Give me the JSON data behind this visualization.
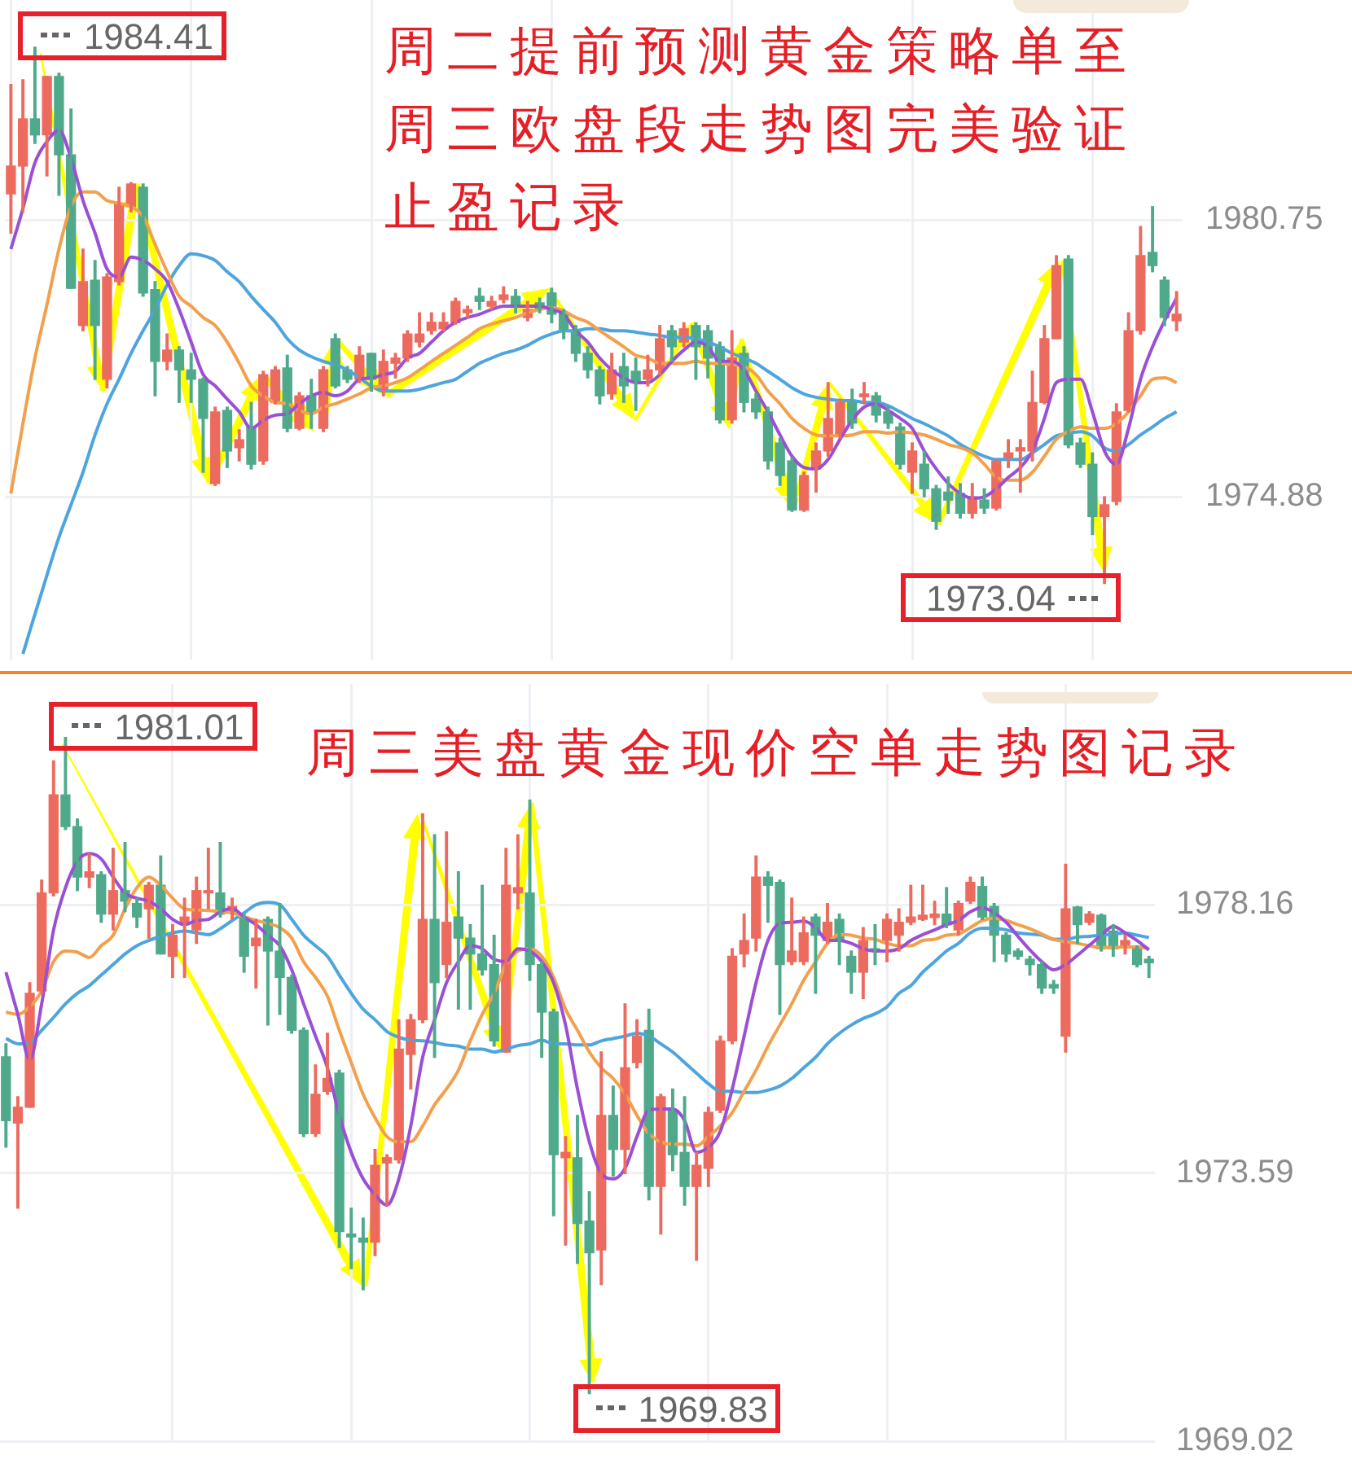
{
  "chart_data": [
    {
      "type": "candlestick",
      "title": "周二提前预测黄金策略单至周三欧盘段走势图完美验证止盈记录",
      "categories": [
        null,
        null,
        null,
        null,
        null,
        null,
        null,
        null,
        null,
        null,
        null,
        null,
        null,
        null,
        null,
        null,
        null,
        null,
        null,
        null,
        null,
        null,
        null,
        null,
        null,
        null,
        null,
        null,
        null,
        null,
        null,
        null,
        null,
        null,
        null,
        null,
        null,
        null,
        null,
        null,
        null,
        null,
        null,
        null,
        null,
        null,
        null,
        null,
        null,
        null,
        null,
        null,
        null,
        null,
        null,
        null,
        null,
        null,
        null,
        null,
        null,
        null,
        null,
        null,
        null,
        null,
        null,
        null,
        null,
        null,
        null,
        null,
        null,
        null,
        null,
        null,
        null,
        null,
        null,
        null,
        null,
        null,
        null,
        null,
        null,
        null,
        null,
        null,
        null,
        null,
        null,
        null,
        null,
        null,
        null,
        null,
        null,
        null
      ],
      "ohlc": [
        [
          1981.3,
          1983.62,
          1980.47,
          1981.89
        ],
        [
          1981.89,
          1983.72,
          1980.92,
          1982.89
        ],
        [
          1982.89,
          1984.41,
          1982.37,
          1982.55
        ],
        [
          1982.55,
          1983.79,
          1981.68,
          1983.79
        ],
        [
          1983.79,
          1983.86,
          1981.27,
          1982.13
        ],
        [
          1982.13,
          1983.1,
          1979.3,
          1979.3
        ],
        [
          1978.51,
          1980.13,
          1978.4,
          1979.44
        ],
        [
          1979.47,
          1979.89,
          1977.37,
          1978.51
        ],
        [
          1977.37,
          1979.61,
          1977.19,
          1979.54
        ],
        [
          1979.44,
          1981.44,
          1979.37,
          1981.1
        ],
        [
          1981.03,
          1981.54,
          1980.92,
          1981.51
        ],
        [
          1981.44,
          1981.51,
          1979.13,
          1979.2
        ],
        [
          1979.27,
          1979.44,
          1977.02,
          1977.75
        ],
        [
          1977.75,
          1978.33,
          1977.57,
          1977.99
        ],
        [
          1977.99,
          1978.06,
          1976.88,
          1977.57
        ],
        [
          1977.57,
          1977.92,
          1976.88,
          1977.37
        ],
        [
          1977.37,
          1977.4,
          1975.4,
          1976.54
        ],
        [
          1975.16,
          1976.78,
          1975.12,
          1976.68
        ],
        [
          1976.71,
          1976.78,
          1975.5,
          1975.85
        ],
        [
          1975.92,
          1976.3,
          1975.64,
          1976.09
        ],
        [
          1976.36,
          1976.88,
          1975.47,
          1975.57
        ],
        [
          1975.64,
          1977.54,
          1975.57,
          1977.47
        ],
        [
          1976.88,
          1977.64,
          1976.85,
          1977.57
        ],
        [
          1977.61,
          1977.88,
          1976.26,
          1976.33
        ],
        [
          1976.33,
          1977.09,
          1976.3,
          1977.02
        ],
        [
          1977.02,
          1977.37,
          1976.33,
          1976.68
        ],
        [
          1976.33,
          1977.64,
          1976.26,
          1977.57
        ],
        [
          1978.23,
          1978.33,
          1977.19,
          1977.23
        ],
        [
          1977.57,
          1977.64,
          1977.3,
          1977.37
        ],
        [
          1977.37,
          1978.06,
          1977.3,
          1977.88
        ],
        [
          1977.92,
          1977.92,
          1977.12,
          1977.37
        ],
        [
          1977.12,
          1977.99,
          1977.02,
          1977.75
        ],
        [
          1977.71,
          1977.92,
          1977.4,
          1977.82
        ],
        [
          1977.82,
          1978.4,
          1977.75,
          1978.33
        ],
        [
          1978.16,
          1978.78,
          1978.06,
          1978.33
        ],
        [
          1978.4,
          1978.78,
          1978.33,
          1978.58
        ],
        [
          1978.44,
          1978.78,
          1978.4,
          1978.58
        ],
        [
          1978.57,
          1979.09,
          1978.54,
          1979.02
        ],
        [
          1978.78,
          1978.92,
          1978.68,
          1978.85
        ],
        [
          1979.13,
          1979.3,
          1978.85,
          1979.02
        ],
        [
          1978.92,
          1979.13,
          1978.85,
          1979.02
        ],
        [
          1979.06,
          1979.33,
          1978.99,
          1979.16
        ],
        [
          1979.13,
          1979.27,
          1978.78,
          1978.92
        ],
        [
          1978.68,
          1979.02,
          1978.61,
          1978.85
        ],
        [
          1978.99,
          1979.09,
          1978.78,
          1978.85
        ],
        [
          1979.2,
          1979.3,
          1978.57,
          1978.75
        ],
        [
          1978.78,
          1978.85,
          1978.23,
          1978.4
        ],
        [
          1978.4,
          1978.51,
          1977.75,
          1977.92
        ],
        [
          1977.92,
          1978.06,
          1977.4,
          1977.57
        ],
        [
          1977.57,
          1977.64,
          1976.85,
          1977.02
        ],
        [
          1977.06,
          1977.92,
          1976.95,
          1977.57
        ],
        [
          1977.64,
          1977.92,
          1976.88,
          1977.23
        ],
        [
          1977.54,
          1977.82,
          1976.71,
          1977.3
        ],
        [
          1977.37,
          1977.88,
          1977.23,
          1977.57
        ],
        [
          1977.57,
          1978.51,
          1977.47,
          1978.23
        ],
        [
          1978.4,
          1978.51,
          1977.75,
          1978.06
        ],
        [
          1978.16,
          1978.57,
          1978.06,
          1978.44
        ],
        [
          1978.51,
          1978.57,
          1977.37,
          1978.06
        ],
        [
          1978.4,
          1978.51,
          1977.4,
          1977.82
        ],
        [
          1978.06,
          1978.16,
          1976.44,
          1976.51
        ],
        [
          1976.51,
          1978.4,
          1976.44,
          1977.82
        ],
        [
          1977.92,
          1978.06,
          1976.68,
          1976.88
        ],
        [
          1976.95,
          1977.06,
          1976.54,
          1976.68
        ],
        [
          1976.68,
          1976.78,
          1975.47,
          1975.64
        ],
        [
          1976.02,
          1976.12,
          1975.12,
          1975.33
        ],
        [
          1975.64,
          1975.71,
          1974.57,
          1974.6
        ],
        [
          1974.6,
          1975.4,
          1974.57,
          1975.33
        ],
        [
          1975.47,
          1976.02,
          1974.98,
          1975.85
        ],
        [
          1975.85,
          1977.3,
          1975.74,
          1976.54
        ],
        [
          1976.19,
          1976.95,
          1976.12,
          1976.88
        ],
        [
          1976.88,
          1977.16,
          1976.33,
          1976.44
        ],
        [
          1977.0,
          1977.3,
          1976.85,
          1977.06
        ],
        [
          1977.02,
          1977.09,
          1976.47,
          1976.61
        ],
        [
          1976.68,
          1976.81,
          1976.33,
          1976.44
        ],
        [
          1976.36,
          1976.44,
          1975.47,
          1975.57
        ],
        [
          1975.4,
          1976.02,
          1974.95,
          1975.85
        ],
        [
          1975.57,
          1975.85,
          1974.88,
          1975.05
        ],
        [
          1975.05,
          1975.12,
          1974.19,
          1974.36
        ],
        [
          1974.98,
          1975.3,
          1974.53,
          1974.81
        ],
        [
          1974.95,
          1975.16,
          1974.43,
          1974.53
        ],
        [
          1974.53,
          1975.16,
          1974.43,
          1974.88
        ],
        [
          1974.81,
          1975.05,
          1974.53,
          1974.64
        ],
        [
          1974.64,
          1975.67,
          1974.6,
          1975.64
        ],
        [
          1975.71,
          1976.09,
          1975.5,
          1975.81
        ],
        [
          1975.85,
          1976.09,
          1974.98,
          1975.92
        ],
        [
          1975.85,
          1977.54,
          1975.64,
          1976.88
        ],
        [
          1976.88,
          1978.51,
          1976.85,
          1978.23
        ],
        [
          1978.23,
          1979.99,
          1978.23,
          1979.78
        ],
        [
          1979.92,
          1979.99,
          1975.92,
          1975.98
        ],
        [
          1976.02,
          1976.12,
          1975.5,
          1975.57
        ],
        [
          1975.57,
          1975.81,
          1974.08,
          1974.46
        ],
        [
          1974.46,
          1974.88,
          1973.04,
          1974.71
        ],
        [
          1974.78,
          1976.85,
          1974.71,
          1976.68
        ],
        [
          1976.71,
          1978.78,
          1976.68,
          1978.4
        ],
        [
          1978.4,
          1980.61,
          1978.33,
          1979.99
        ],
        [
          1980.06,
          1981.03,
          1979.65,
          1979.78
        ],
        [
          1979.47,
          1979.54,
          1978.51,
          1978.68
        ],
        [
          1978.61,
          1979.23,
          1978.4,
          1978.75
        ]
      ],
      "colors": [
        "#ec6b5e",
        "#ec6b5e",
        "#4fa98b",
        "#ec6b5e",
        "#4fa98b",
        "#4fa98b",
        "#ec6b5e",
        "#4fa98b",
        "#ec6b5e",
        "#ec6b5e",
        "#ec6b5e",
        "#4fa98b",
        "#4fa98b",
        "#ec6b5e",
        "#4fa98b",
        "#4fa98b",
        "#4fa98b",
        "#ec6b5e",
        "#4fa98b",
        "#ec6b5e",
        "#4fa98b",
        "#ec6b5e",
        "#ec6b5e",
        "#4fa98b",
        "#ec6b5e",
        "#4fa98b",
        "#ec6b5e",
        "#4fa98b",
        "#4fa98b",
        "#ec6b5e",
        "#4fa98b",
        "#ec6b5e",
        "#ec6b5e",
        "#ec6b5e",
        "#ec6b5e",
        "#ec6b5e",
        "#ec6b5e",
        "#ec6b5e",
        "#ec6b5e",
        "#4fa98b",
        "#ec6b5e",
        "#ec6b5e",
        "#4fa98b",
        "#ec6b5e",
        "#4fa98b",
        "#4fa98b",
        "#4fa98b",
        "#4fa98b",
        "#4fa98b",
        "#4fa98b",
        "#ec6b5e",
        "#4fa98b",
        "#4fa98b",
        "#ec6b5e",
        "#ec6b5e",
        "#4fa98b",
        "#ec6b5e",
        "#4fa98b",
        "#4fa98b",
        "#4fa98b",
        "#ec6b5e",
        "#4fa98b",
        "#4fa98b",
        "#4fa98b",
        "#4fa98b",
        "#4fa98b",
        "#ec6b5e",
        "#ec6b5e",
        "#ec6b5e",
        "#ec6b5e",
        "#4fa98b",
        "#ec6b5e",
        "#4fa98b",
        "#4fa98b",
        "#4fa98b",
        "#ec6b5e",
        "#4fa98b",
        "#4fa98b",
        "#4fa98b",
        "#4fa98b",
        "#ec6b5e",
        "#4fa98b",
        "#ec6b5e",
        "#ec6b5e",
        "#ec6b5e",
        "#ec6b5e",
        "#ec6b5e",
        "#ec6b5e",
        "#4fa98b",
        "#4fa98b",
        "#4fa98b",
        "#ec6b5e",
        "#ec6b5e",
        "#ec6b5e",
        "#ec6b5e",
        "#4fa98b",
        "#4fa98b",
        "#ec6b5e"
      ],
      "series": [
        {
          "type": "line",
          "color": "#9b4fd4",
          "values": [
            1980.13,
            1980.99,
            1981.96,
            1982.41,
            1982.65,
            1982.06,
            1981.16,
            1980.47,
            1979.71,
            1979.54,
            1979.96,
            1979.89,
            1979.71,
            1979.44,
            1978.85,
            1978.16,
            1977.47,
            1977.23,
            1976.95,
            1976.68,
            1976.33,
            1976.5,
            1976.61,
            1976.64,
            1976.85,
            1977.02,
            1977.09,
            1977.02,
            1977.12,
            1977.37,
            1977.4,
            1977.47,
            1977.54,
            1977.82,
            1977.92,
            1978.16,
            1978.4,
            1978.58,
            1978.68,
            1978.75,
            1978.85,
            1978.92,
            1978.92,
            1978.92,
            1978.92,
            1978.85,
            1978.75,
            1978.4,
            1978.16,
            1977.82,
            1977.57,
            1977.4,
            1977.3,
            1977.3,
            1977.47,
            1977.75,
            1977.99,
            1978.16,
            1978.06,
            1977.75,
            1977.75,
            1977.57,
            1977.12,
            1976.68,
            1976.19,
            1975.74,
            1975.5,
            1975.47,
            1975.67,
            1976.1,
            1976.5,
            1976.78,
            1976.85,
            1976.71,
            1976.54,
            1976.33,
            1975.85,
            1975.47,
            1975.16,
            1974.95,
            1974.85,
            1974.88,
            1975.05,
            1975.29,
            1975.5,
            1975.85,
            1976.54,
            1977.3,
            1977.37,
            1977.37,
            1976.68,
            1975.85,
            1975.57,
            1976.33,
            1977.37,
            1978.06,
            1978.61,
            1979.09
          ]
        },
        {
          "type": "line",
          "color": "#f2a04c",
          "values": [
            1974.95,
            1976.43,
            1977.82,
            1978.95,
            1980.13,
            1981.03,
            1981.34,
            1981.34,
            1981.16,
            1981.1,
            1981.03,
            1980.82,
            1980.23,
            1979.65,
            1979.13,
            1978.92,
            1978.68,
            1978.51,
            1978.16,
            1977.71,
            1977.23,
            1977.02,
            1976.88,
            1976.85,
            1976.71,
            1976.64,
            1976.78,
            1976.85,
            1976.95,
            1977.06,
            1977.19,
            1977.23,
            1977.3,
            1977.4,
            1977.57,
            1977.75,
            1977.92,
            1978.09,
            1978.26,
            1978.44,
            1978.54,
            1978.61,
            1978.68,
            1978.78,
            1978.85,
            1978.89,
            1978.82,
            1978.68,
            1978.58,
            1978.4,
            1978.23,
            1978.06,
            1977.88,
            1977.82,
            1977.71,
            1977.71,
            1977.71,
            1977.75,
            1977.71,
            1977.71,
            1977.68,
            1977.64,
            1977.47,
            1977.12,
            1976.85,
            1976.54,
            1976.33,
            1976.19,
            1976.17,
            1976.17,
            1976.19,
            1976.26,
            1976.26,
            1976.23,
            1976.26,
            1976.23,
            1976.19,
            1976.1,
            1975.99,
            1975.92,
            1975.81,
            1975.57,
            1975.29,
            1975.23,
            1975.23,
            1975.4,
            1975.74,
            1976.1,
            1976.26,
            1976.36,
            1976.33,
            1976.33,
            1976.43,
            1976.68,
            1977.02,
            1977.37,
            1977.4,
            1977.3
          ]
        },
        {
          "type": "line",
          "color": "#4ea5de",
          "values": [
            null,
            1971.55,
            1972.39,
            1973.22,
            1974.02,
            1974.71,
            1975.4,
            1976.19,
            1976.85,
            1977.37,
            1977.92,
            1978.4,
            1978.85,
            1979.37,
            1979.78,
            1980.03,
            1979.99,
            1979.89,
            1979.65,
            1979.44,
            1979.13,
            1978.85,
            1978.58,
            1978.23,
            1977.99,
            1977.85,
            1977.75,
            1977.68,
            1977.57,
            1977.4,
            1977.23,
            1977.12,
            1977.12,
            1977.12,
            1977.16,
            1977.23,
            1977.3,
            1977.37,
            1977.54,
            1977.71,
            1977.82,
            1977.92,
            1977.99,
            1978.09,
            1978.23,
            1978.33,
            1978.4,
            1978.4,
            1978.44,
            1978.44,
            1978.4,
            1978.4,
            1978.37,
            1978.33,
            1978.3,
            1978.26,
            1978.26,
            1978.23,
            1978.16,
            1978.06,
            1977.92,
            1977.82,
            1977.71,
            1977.54,
            1977.37,
            1977.19,
            1977.06,
            1976.99,
            1976.95,
            1976.92,
            1976.92,
            1976.88,
            1976.88,
            1976.81,
            1976.68,
            1976.54,
            1976.43,
            1976.3,
            1976.17,
            1975.99,
            1975.85,
            1975.74,
            1975.67,
            1975.67,
            1975.67,
            1975.81,
            1975.99,
            1976.17,
            1976.23,
            1976.26,
            1976.17,
            1975.92,
            1975.85,
            1975.99,
            1976.19,
            1976.36,
            1976.54,
            1976.68
          ]
        }
      ],
      "ylim": [
        1971.43,
        1985.41
      ],
      "yticks": [
        1974.88,
        1980.75
      ],
      "grid": true,
      "tick_labels": "y",
      "annotations": [
        "1984.41",
        "1973.04"
      ]
    },
    {
      "type": "candlestick",
      "title": "周三美盘黄金现价空单走势图记录",
      "categories": [
        null,
        null,
        null,
        null,
        null,
        null,
        null,
        null,
        null,
        null,
        null,
        null,
        null,
        null,
        null,
        null,
        null,
        null,
        null,
        null,
        null,
        null,
        null,
        null,
        null,
        null,
        null,
        null,
        null,
        null,
        null,
        null,
        null,
        null,
        null,
        null,
        null,
        null,
        null,
        null,
        null,
        null,
        null,
        null,
        null,
        null,
        null,
        null,
        null,
        null,
        null,
        null,
        null,
        null,
        null,
        null,
        null,
        null,
        null,
        null,
        null,
        null,
        null,
        null,
        null,
        null,
        null,
        null,
        null,
        null,
        null,
        null,
        null,
        null,
        null,
        null,
        null,
        null,
        null,
        null,
        null,
        null,
        null,
        null,
        null,
        null,
        null,
        null,
        null,
        null,
        null,
        null,
        null,
        null,
        null,
        null,
        null
      ],
      "ohlc": [
        [
          1975.57,
          1975.79,
          1974.03,
          1974.48
        ],
        [
          1974.44,
          1974.89,
          1972.99,
          1974.71
        ],
        [
          1974.71,
          1976.83,
          1974.71,
          1976.65
        ],
        [
          1976.69,
          1978.58,
          1976.65,
          1978.36
        ],
        [
          1978.36,
          1980.61,
          1978.31,
          1980.03
        ],
        [
          1980.03,
          1981.01,
          1979.44,
          1979.49
        ],
        [
          1979.49,
          1979.62,
          1978.4,
          1978.63
        ],
        [
          1978.63,
          1979.03,
          1978.45,
          1978.72
        ],
        [
          1978.67,
          1978.72,
          1977.86,
          1978.0
        ],
        [
          1978.0,
          1979.12,
          1977.73,
          1978.4
        ],
        [
          1978.4,
          1979.22,
          1978.04,
          1978.22
        ],
        [
          1978.18,
          1978.27,
          1977.77,
          1977.95
        ],
        [
          1978.09,
          1978.54,
          1977.59,
          1978.49
        ],
        [
          1978.49,
          1978.99,
          1977.32,
          1977.32
        ],
        [
          1977.28,
          1977.82,
          1976.92,
          1977.64
        ],
        [
          1977.82,
          1978.27,
          1976.92,
          1977.95
        ],
        [
          1977.73,
          1978.63,
          1977.5,
          1978.4
        ],
        [
          1978.36,
          1979.12,
          1978.09,
          1978.4
        ],
        [
          1978.36,
          1979.22,
          1977.95,
          1978.0
        ],
        [
          1978.04,
          1978.27,
          1977.91,
          1978.13
        ],
        [
          1977.95,
          1978.0,
          1977.01,
          1977.28
        ],
        [
          1977.46,
          1977.91,
          1976.74,
          1977.59
        ],
        [
          1977.91,
          1977.95,
          1976.11,
          1977.37
        ],
        [
          1977.37,
          1978.18,
          1976.29,
          1976.92
        ],
        [
          1976.92,
          1976.96,
          1975.97,
          1976.02
        ],
        [
          1976.02,
          1976.06,
          1974.21,
          1974.26
        ],
        [
          1974.26,
          1975.43,
          1974.21,
          1974.93
        ],
        [
          1974.98,
          1975.97,
          1974.93,
          1975.2
        ],
        [
          1975.29,
          1975.34,
          1972.32,
          1972.59
        ],
        [
          1972.55,
          1972.99,
          1971.96,
          1972.5
        ],
        [
          1972.48,
          1972.82,
          1971.6,
          1972.41
        ],
        [
          1972.41,
          1973.99,
          1972.18,
          1973.72
        ],
        [
          1973.76,
          1973.9,
          1973.04,
          1973.85
        ],
        [
          1973.81,
          1976.2,
          1973.76,
          1975.7
        ],
        [
          1975.61,
          1976.29,
          1975.02,
          1976.2
        ],
        [
          1976.2,
          1979.71,
          1976.15,
          1977.91
        ],
        [
          1977.91,
          1979.35,
          1975.56,
          1976.83
        ],
        [
          1977.14,
          1979.4,
          1976.92,
          1977.86
        ],
        [
          1977.95,
          1978.72,
          1976.38,
          1977.59
        ],
        [
          1977.59,
          1977.82,
          1976.38,
          1977.32
        ],
        [
          1977.32,
          1978.49,
          1976.96,
          1977.05
        ],
        [
          1977.14,
          1977.64,
          1975.75,
          1975.84
        ],
        [
          1975.65,
          1979.12,
          1975.65,
          1978.49
        ],
        [
          1978.36,
          1979.35,
          1978.09,
          1978.45
        ],
        [
          1978.36,
          1979.94,
          1976.87,
          1977.14
        ],
        [
          1977.14,
          1977.19,
          1975.56,
          1976.33
        ],
        [
          1976.33,
          1976.38,
          1972.86,
          1973.9
        ],
        [
          1973.85,
          1974.21,
          1972.36,
          1973.94
        ],
        [
          1973.85,
          1974.57,
          1972.05,
          1972.73
        ],
        [
          1972.77,
          1973.27,
          1969.83,
          1972.23
        ],
        [
          1972.28,
          1975.65,
          1971.69,
          1974.57
        ],
        [
          1974.57,
          1975.07,
          1973.54,
          1973.99
        ],
        [
          1973.99,
          1976.47,
          1973.58,
          1975.38
        ],
        [
          1975.47,
          1976.2,
          1975.38,
          1975.92
        ],
        [
          1976.02,
          1976.38,
          1973.13,
          1973.36
        ],
        [
          1973.36,
          1974.93,
          1972.55,
          1974.89
        ],
        [
          1974.66,
          1975.02,
          1973.63,
          1973.9
        ],
        [
          1973.94,
          1974.89,
          1973.04,
          1973.36
        ],
        [
          1973.36,
          1973.94,
          1972.1,
          1973.72
        ],
        [
          1973.67,
          1974.71,
          1973.36,
          1974.62
        ],
        [
          1974.66,
          1975.92,
          1974.62,
          1975.84
        ],
        [
          1975.84,
          1977.41,
          1975.79,
          1977.28
        ],
        [
          1977.32,
          1978.0,
          1977.1,
          1977.55
        ],
        [
          1977.59,
          1978.99,
          1977.37,
          1978.63
        ],
        [
          1978.63,
          1978.72,
          1977.86,
          1978.49
        ],
        [
          1978.54,
          1978.58,
          1976.29,
          1977.14
        ],
        [
          1977.19,
          1978.27,
          1977.14,
          1977.37
        ],
        [
          1977.19,
          1977.95,
          1977.14,
          1977.68
        ],
        [
          1977.95,
          1978.0,
          1976.65,
          1977.64
        ],
        [
          1977.55,
          1978.18,
          1977.5,
          1977.86
        ],
        [
          1977.91,
          1978.0,
          1977.14,
          1977.55
        ],
        [
          1977.28,
          1977.37,
          1976.65,
          1977.01
        ],
        [
          1977.01,
          1977.77,
          1976.56,
          1977.55
        ],
        [
          1977.41,
          1977.82,
          1977.14,
          1977.37
        ],
        [
          1977.55,
          1978.0,
          1977.19,
          1977.91
        ],
        [
          1977.64,
          1978.09,
          1977.37,
          1977.86
        ],
        [
          1977.86,
          1978.49,
          1977.82,
          1977.95
        ],
        [
          1977.91,
          1978.49,
          1977.89,
          1977.98
        ],
        [
          1977.94,
          1978.22,
          1977.82,
          1978.0
        ],
        [
          1978.0,
          1978.45,
          1977.77,
          1977.82
        ],
        [
          1977.73,
          1978.22,
          1977.64,
          1978.18
        ],
        [
          1978.22,
          1978.63,
          1978.18,
          1978.54
        ],
        [
          1978.47,
          1978.63,
          1977.91,
          1977.95
        ],
        [
          1978.13,
          1978.18,
          1977.19,
          1977.64
        ],
        [
          1977.64,
          1977.68,
          1977.19,
          1977.32
        ],
        [
          1977.37,
          1977.41,
          1977.23,
          1977.28
        ],
        [
          1977.23,
          1977.28,
          1976.96,
          1977.14
        ],
        [
          1977.14,
          1977.19,
          1976.65,
          1976.74
        ],
        [
          1976.8,
          1976.87,
          1976.65,
          1976.74
        ],
        [
          1975.92,
          1978.85,
          1975.65,
          1978.09
        ],
        [
          1978.12,
          1978.13,
          1977.5,
          1977.82
        ],
        [
          1977.86,
          1978.04,
          1977.82,
          1978.0
        ],
        [
          1977.98,
          1978.0,
          1977.37,
          1977.41
        ],
        [
          1977.71,
          1977.82,
          1977.28,
          1977.41
        ],
        [
          1977.46,
          1977.64,
          1977.32,
          1977.55
        ],
        [
          1977.41,
          1977.46,
          1977.1,
          1977.14
        ],
        [
          1977.23,
          1977.28,
          1976.92,
          1977.17
        ]
      ],
      "colors": [
        "#4fa98b",
        "#ec6b5e",
        "#ec6b5e",
        "#ec6b5e",
        "#ec6b5e",
        "#4fa98b",
        "#4fa98b",
        "#ec6b5e",
        "#4fa98b",
        "#ec6b5e",
        "#4fa98b",
        "#4fa98b",
        "#ec6b5e",
        "#4fa98b",
        "#ec6b5e",
        "#ec6b5e",
        "#ec6b5e",
        "#ec6b5e",
        "#4fa98b",
        "#ec6b5e",
        "#4fa98b",
        "#ec6b5e",
        "#4fa98b",
        "#4fa98b",
        "#4fa98b",
        "#4fa98b",
        "#ec6b5e",
        "#ec6b5e",
        "#4fa98b",
        "#4fa98b",
        "#4fa98b",
        "#ec6b5e",
        "#ec6b5e",
        "#ec6b5e",
        "#ec6b5e",
        "#ec6b5e",
        "#4fa98b",
        "#ec6b5e",
        "#4fa98b",
        "#4fa98b",
        "#4fa98b",
        "#4fa98b",
        "#ec6b5e",
        "#ec6b5e",
        "#4fa98b",
        "#4fa98b",
        "#4fa98b",
        "#ec6b5e",
        "#4fa98b",
        "#4fa98b",
        "#ec6b5e",
        "#4fa98b",
        "#ec6b5e",
        "#ec6b5e",
        "#4fa98b",
        "#ec6b5e",
        "#4fa98b",
        "#4fa98b",
        "#ec6b5e",
        "#ec6b5e",
        "#ec6b5e",
        "#ec6b5e",
        "#ec6b5e",
        "#ec6b5e",
        "#4fa98b",
        "#4fa98b",
        "#ec6b5e",
        "#ec6b5e",
        "#4fa98b",
        "#ec6b5e",
        "#4fa98b",
        "#4fa98b",
        "#ec6b5e",
        "#4fa98b",
        "#ec6b5e",
        "#ec6b5e",
        "#ec6b5e",
        "#ec6b5e",
        "#ec6b5e",
        "#4fa98b",
        "#ec6b5e",
        "#ec6b5e",
        "#4fa98b",
        "#4fa98b",
        "#4fa98b",
        "#4fa98b",
        "#4fa98b",
        "#4fa98b",
        "#4fa98b",
        "#ec6b5e",
        "#4fa98b",
        "#ec6b5e",
        "#4fa98b",
        "#4fa98b",
        "#ec6b5e",
        "#4fa98b",
        "#4fa98b"
      ],
      "series": [
        {
          "type": "line",
          "color": "#9b4fd4",
          "values": [
            1977.01,
            1976.29,
            1975.52,
            1976.47,
            1977.73,
            1978.45,
            1978.9,
            1979.03,
            1978.94,
            1978.63,
            1978.36,
            1978.27,
            1978.22,
            1978.09,
            1977.91,
            1977.82,
            1977.89,
            1977.91,
            1978.04,
            1978.09,
            1977.95,
            1977.82,
            1977.64,
            1977.46,
            1977.05,
            1976.47,
            1975.92,
            1975.38,
            1974.57,
            1973.94,
            1973.49,
            1973.22,
            1973.04,
            1973.49,
            1974.39,
            1975.56,
            1976.2,
            1976.83,
            1977.19,
            1977.46,
            1977.41,
            1977.23,
            1977.19,
            1977.41,
            1977.37,
            1977.19,
            1976.83,
            1976.11,
            1975.02,
            1974.12,
            1973.58,
            1973.49,
            1973.67,
            1974.21,
            1974.66,
            1974.68,
            1974.68,
            1974.48,
            1973.94,
            1974.03,
            1974.3,
            1975.02,
            1975.92,
            1976.83,
            1977.55,
            1977.84,
            1977.86,
            1977.88,
            1977.77,
            1977.55,
            1977.55,
            1977.5,
            1977.41,
            1977.37,
            1977.37,
            1977.41,
            1977.55,
            1977.65,
            1977.73,
            1977.82,
            1977.89,
            1978.04,
            1978.11,
            1978.02,
            1977.86,
            1977.62,
            1977.39,
            1977.19,
            1977.05,
            1977.14,
            1977.3,
            1977.47,
            1977.64,
            1977.79,
            1977.68,
            1977.55,
            1977.39
          ]
        },
        {
          "type": "line",
          "color": "#f2a04c",
          "values": [
            1976.33,
            1976.29,
            1976.42,
            1976.69,
            1977.19,
            1977.37,
            1977.35,
            1977.26,
            1977.46,
            1977.64,
            1978.09,
            1978.45,
            1978.63,
            1978.49,
            1978.27,
            1978.09,
            1978.07,
            1978.06,
            1978.04,
            1978.02,
            1977.95,
            1977.89,
            1977.84,
            1977.77,
            1977.59,
            1977.19,
            1976.92,
            1976.6,
            1976.02,
            1975.47,
            1974.93,
            1974.53,
            1974.21,
            1974.12,
            1974.12,
            1974.39,
            1974.75,
            1975.02,
            1975.34,
            1975.84,
            1976.29,
            1976.65,
            1977.14,
            1977.37,
            1977.41,
            1977.28,
            1976.92,
            1976.38,
            1976.02,
            1975.65,
            1975.38,
            1975.2,
            1974.93,
            1974.57,
            1974.26,
            1974.12,
            1974.08,
            1974.08,
            1974.05,
            1974.21,
            1974.39,
            1974.62,
            1974.98,
            1975.34,
            1975.75,
            1976.11,
            1976.47,
            1976.87,
            1977.19,
            1977.5,
            1977.65,
            1977.64,
            1977.59,
            1977.57,
            1977.5,
            1977.46,
            1977.46,
            1977.55,
            1977.57,
            1977.64,
            1977.66,
            1977.77,
            1977.89,
            1977.93,
            1977.89,
            1977.82,
            1977.75,
            1977.66,
            1977.57,
            1977.53,
            1977.5,
            1977.46,
            1977.43,
            1977.43,
            1977.44,
            1977.44,
            1977.41
          ]
        },
        {
          "type": "line",
          "color": "#4ea5de",
          "values": [
            1975.88,
            1975.79,
            1975.81,
            1976.02,
            1976.24,
            1976.47,
            1976.65,
            1976.78,
            1976.96,
            1977.14,
            1977.32,
            1977.46,
            1977.55,
            1977.62,
            1977.68,
            1977.71,
            1977.68,
            1977.65,
            1977.75,
            1977.89,
            1978.02,
            1978.16,
            1978.2,
            1978.16,
            1977.91,
            1977.64,
            1977.46,
            1977.28,
            1976.96,
            1976.65,
            1976.38,
            1976.2,
            1976.0,
            1975.9,
            1975.85,
            1975.84,
            1975.81,
            1975.77,
            1975.75,
            1975.7,
            1975.7,
            1975.65,
            1975.7,
            1975.76,
            1975.79,
            1975.85,
            1975.79,
            1975.79,
            1975.77,
            1975.77,
            1975.84,
            1975.88,
            1975.92,
            1975.97,
            1975.92,
            1975.79,
            1975.65,
            1975.47,
            1975.29,
            1975.11,
            1974.98,
            1974.98,
            1974.96,
            1974.96,
            1975.0,
            1975.07,
            1975.2,
            1975.38,
            1975.56,
            1975.79,
            1975.97,
            1976.11,
            1976.22,
            1976.3,
            1976.42,
            1976.65,
            1976.78,
            1977.01,
            1977.19,
            1977.37,
            1977.5,
            1977.68,
            1977.76,
            1977.76,
            1977.73,
            1977.68,
            1977.66,
            1977.64,
            1977.57,
            1977.57,
            1977.61,
            1977.62,
            1977.64,
            1977.66,
            1977.68,
            1977.64,
            1977.6
          ]
        }
      ],
      "ylim": [
        1969.02,
        1981.92
      ],
      "yticks": [
        1969.02,
        1973.59,
        1978.16
      ],
      "grid": true,
      "tick_labels": "y",
      "annotations": [
        "1981.01",
        "1969.83"
      ]
    }
  ]
}
